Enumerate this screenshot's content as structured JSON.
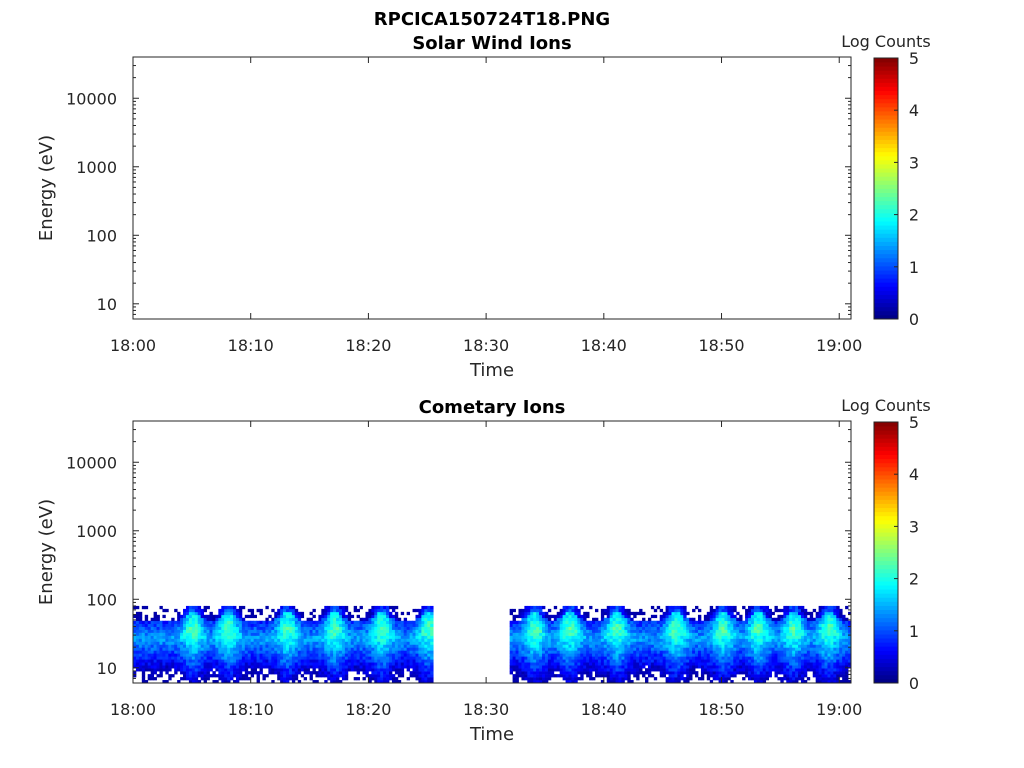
{
  "figure_title": "RPCICA150724T18.PNG",
  "chart_data": [
    {
      "type": "heatmap",
      "title": "Solar Wind Ions",
      "xlabel": "Time",
      "ylabel": "Energy (eV)",
      "x_range": [
        "18:00",
        "19:01"
      ],
      "x_ticks": [
        "18:00",
        "18:10",
        "18:20",
        "18:30",
        "18:40",
        "18:50",
        "19:00"
      ],
      "y_scale": "log",
      "y_range": [
        6,
        40000
      ],
      "y_ticks": [
        "10",
        "100",
        "1000",
        "10000"
      ],
      "colorbar": {
        "label": "Log Counts",
        "range": [
          0,
          5
        ],
        "ticks": [
          "0",
          "1",
          "2",
          "3",
          "4",
          "5"
        ],
        "colormap": "jet"
      },
      "data_blocks": []
    },
    {
      "type": "heatmap",
      "title": "Cometary Ions",
      "xlabel": "Time",
      "ylabel": "Energy (eV)",
      "x_range": [
        "18:00",
        "19:01"
      ],
      "x_ticks": [
        "18:00",
        "18:10",
        "18:20",
        "18:30",
        "18:40",
        "18:50",
        "19:00"
      ],
      "y_scale": "log",
      "y_range": [
        6,
        40000
      ],
      "y_ticks": [
        "10",
        "100",
        "1000",
        "10000"
      ],
      "colorbar": {
        "label": "Log Counts",
        "range": [
          0,
          5
        ],
        "ticks": [
          "0",
          "1",
          "2",
          "3",
          "4",
          "5"
        ],
        "colormap": "jet"
      },
      "data_blocks": [
        {
          "start": "18:00",
          "end": "18:25.5"
        },
        {
          "start": "18:32",
          "end": "19:01"
        }
      ],
      "energy_band_eV": [
        6,
        80
      ],
      "peak_energy_eV": [
        25,
        40
      ],
      "peak_log_counts": 2.8,
      "enhancements": [
        "18:05",
        "18:08",
        "18:13",
        "18:17",
        "18:21",
        "18:25",
        "18:34",
        "18:37",
        "18:41",
        "18:46",
        "18:50",
        "18:53",
        "18:56",
        "18:59"
      ]
    }
  ]
}
